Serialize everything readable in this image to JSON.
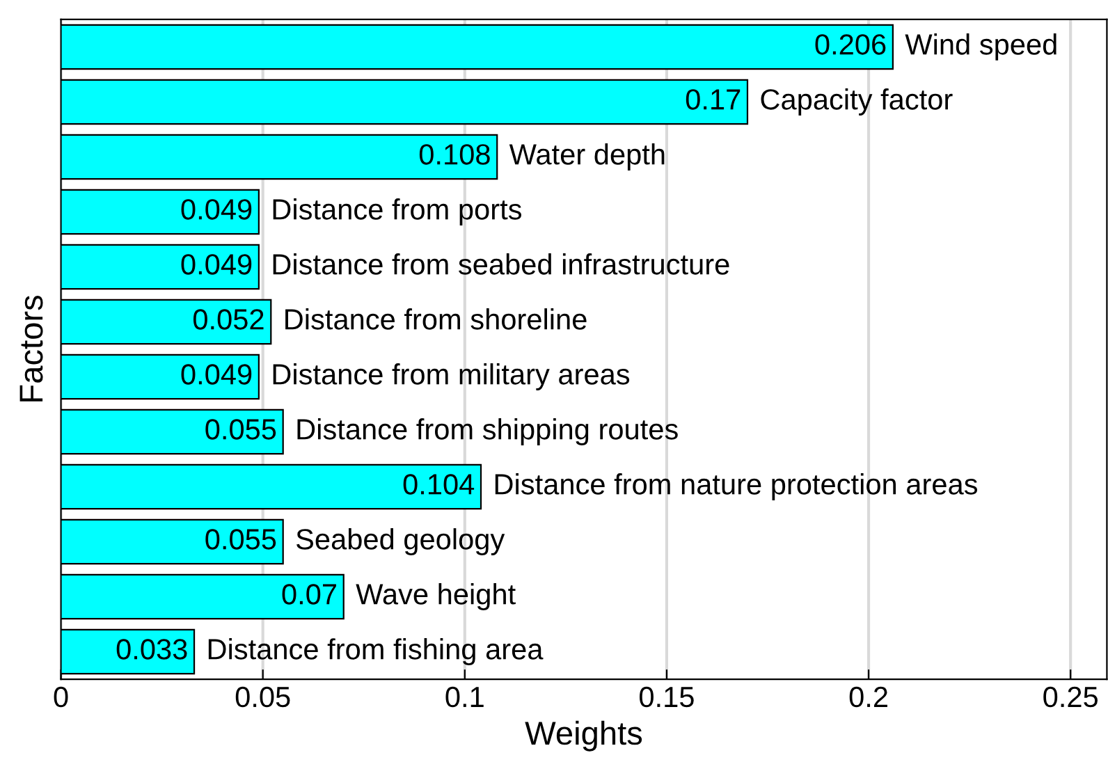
{
  "chart_data": {
    "type": "bar",
    "orientation": "horizontal",
    "xlabel": "Weights",
    "ylabel": "Factors",
    "categories": [
      "Wind speed",
      "Capacity factor",
      "Water depth",
      "Distance from ports",
      "Distance from seabed infrastructure",
      "Distance from shoreline",
      "Distance from military areas",
      "Distance from shipping routes",
      "Distance from nature protection areas",
      "Seabed geology",
      "Wave height",
      "Distance from fishing area"
    ],
    "values": [
      0.206,
      0.17,
      0.108,
      0.049,
      0.049,
      0.052,
      0.049,
      0.055,
      0.104,
      0.055,
      0.07,
      0.033
    ],
    "color": "#00ffff",
    "data_labels": true,
    "xlim": [
      0,
      0.259
    ],
    "xticks": [
      0,
      0.05,
      0.1,
      0.15,
      0.2,
      0.25
    ],
    "grid": "x",
    "tick_labels": "x"
  }
}
